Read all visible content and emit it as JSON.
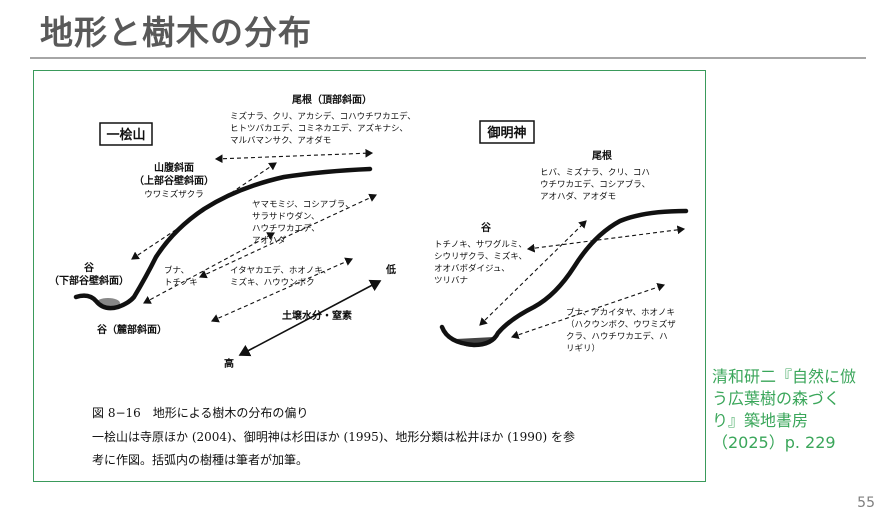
{
  "title": "地形と樹木の分布",
  "citation": "清和研二『自然に倣う広葉樹の森づくり』築地書房（2025）p. 229",
  "page_number": "55",
  "figure": {
    "left": {
      "site_name": "一桧山",
      "ridge_label": "尾根（頂部斜面）",
      "ridge_species": [
        "ミズナラ、クリ、アカシデ、コハウチワカエデ、",
        "ヒトツバカエデ、コミネカエデ、アズキナシ、",
        "マルバマンサク、アオダモ"
      ],
      "midslope_label": [
        "山腹斜面",
        "（上部谷壁斜面）"
      ],
      "midslope_species": [
        "ウワミズザクラ"
      ],
      "middle_species": [
        "ヤマモミジ、コシアブラ、",
        "サラサドウダン、",
        "ハウチワカエデ、",
        "アオハダ"
      ],
      "lower_species": [
        "イタヤカエデ、ホオノキ、",
        "ミズキ、ハウウンボク"
      ],
      "valley_label": [
        "谷",
        "（下部谷壁斜面）"
      ],
      "valley_species": [
        "ブナ、",
        "トチノキ"
      ],
      "valley_bottom_label": "谷（麓部斜面）",
      "axis_low": "低",
      "axis_label": "土壌水分・窒素",
      "axis_high": "高"
    },
    "right": {
      "site_name": "御明神",
      "ridge_label": "尾根",
      "ridge_species": [
        "ヒバ、ミズナラ、クリ、コハ",
        "ウチワカエデ、コシアブラ、",
        "アオハダ、アオダモ"
      ],
      "valley_label": "谷",
      "valley_species": [
        "トチノキ、サワグルミ、",
        "シウリザクラ、ミズキ、",
        "オオバボダイジュ、",
        "ツリバナ"
      ],
      "lower_species": [
        "ブナ、アカイタヤ、ホオノキ",
        "（ハクウンボク、ウワミズザ",
        "クラ、ハウチワカエデ、ハ",
        "リギリ）"
      ]
    },
    "caption": [
      "図 8−16　地形による樹木の分布の偏り",
      "一桧山は寺原ほか (2004)、御明神は杉田ほか (1995)、地形分類は松井ほか (1990) を参",
      "考に作図。括弧内の樹種は筆者が加筆。"
    ]
  }
}
